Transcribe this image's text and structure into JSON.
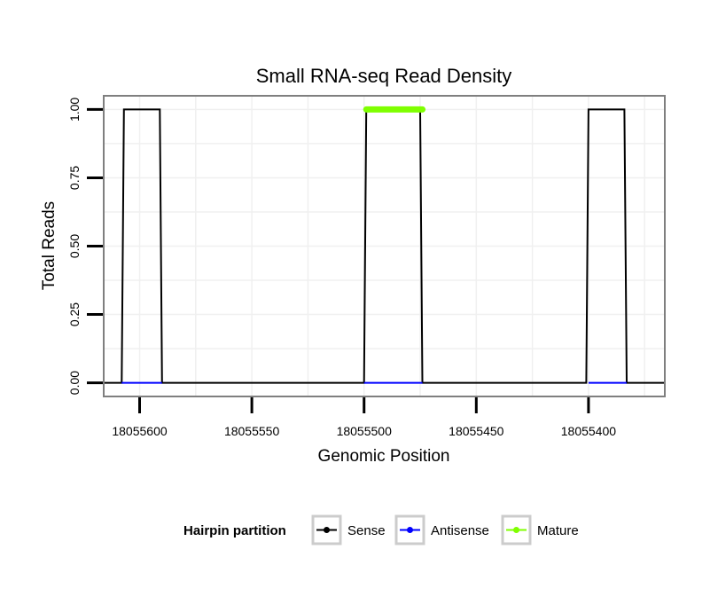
{
  "chart_data": {
    "type": "line",
    "title": "Small RNA-seq Read Density",
    "xlabel": "Genomic Position",
    "ylabel": "Total Reads",
    "x_reversed": true,
    "xlim": [
      18055616,
      18055366
    ],
    "ylim": [
      -0.05,
      1.05
    ],
    "x_ticks": [
      18055600,
      18055550,
      18055500,
      18055450,
      18055400
    ],
    "x_tick_labels": [
      "18055600",
      "18055550",
      "18055500",
      "18055450",
      "18055400"
    ],
    "y_ticks": [
      0,
      0.25,
      0.5,
      0.75,
      1
    ],
    "y_tick_labels": [
      "0.00",
      "0.25",
      "0.50",
      "0.75",
      "1.00"
    ],
    "grid": true,
    "legend_position": "bottom",
    "legend_title": "Hairpin partition",
    "series": [
      {
        "name": "Sense",
        "color": "#000000",
        "x": [
          18055616,
          18055608,
          18055607,
          18055591,
          18055590,
          18055500,
          18055499,
          18055475,
          18055474,
          18055401,
          18055400,
          18055384,
          18055383,
          18055366
        ],
        "y": [
          0,
          0,
          1,
          1,
          0,
          0,
          1,
          1,
          0,
          0,
          1,
          1,
          0,
          0
        ]
      },
      {
        "name": "Antisense",
        "color": "#0000ff",
        "x": [
          18055608,
          18055590,
          18055500,
          18055474,
          18055400,
          18055383
        ],
        "y": [
          0,
          0,
          0,
          0,
          0,
          0
        ],
        "segments": [
          [
            0,
            1
          ],
          [
            2,
            3
          ],
          [
            4,
            5
          ]
        ]
      },
      {
        "name": "Mature",
        "color": "#7fff00",
        "x": [
          18055499,
          18055474
        ],
        "y": [
          1,
          1
        ]
      }
    ]
  }
}
